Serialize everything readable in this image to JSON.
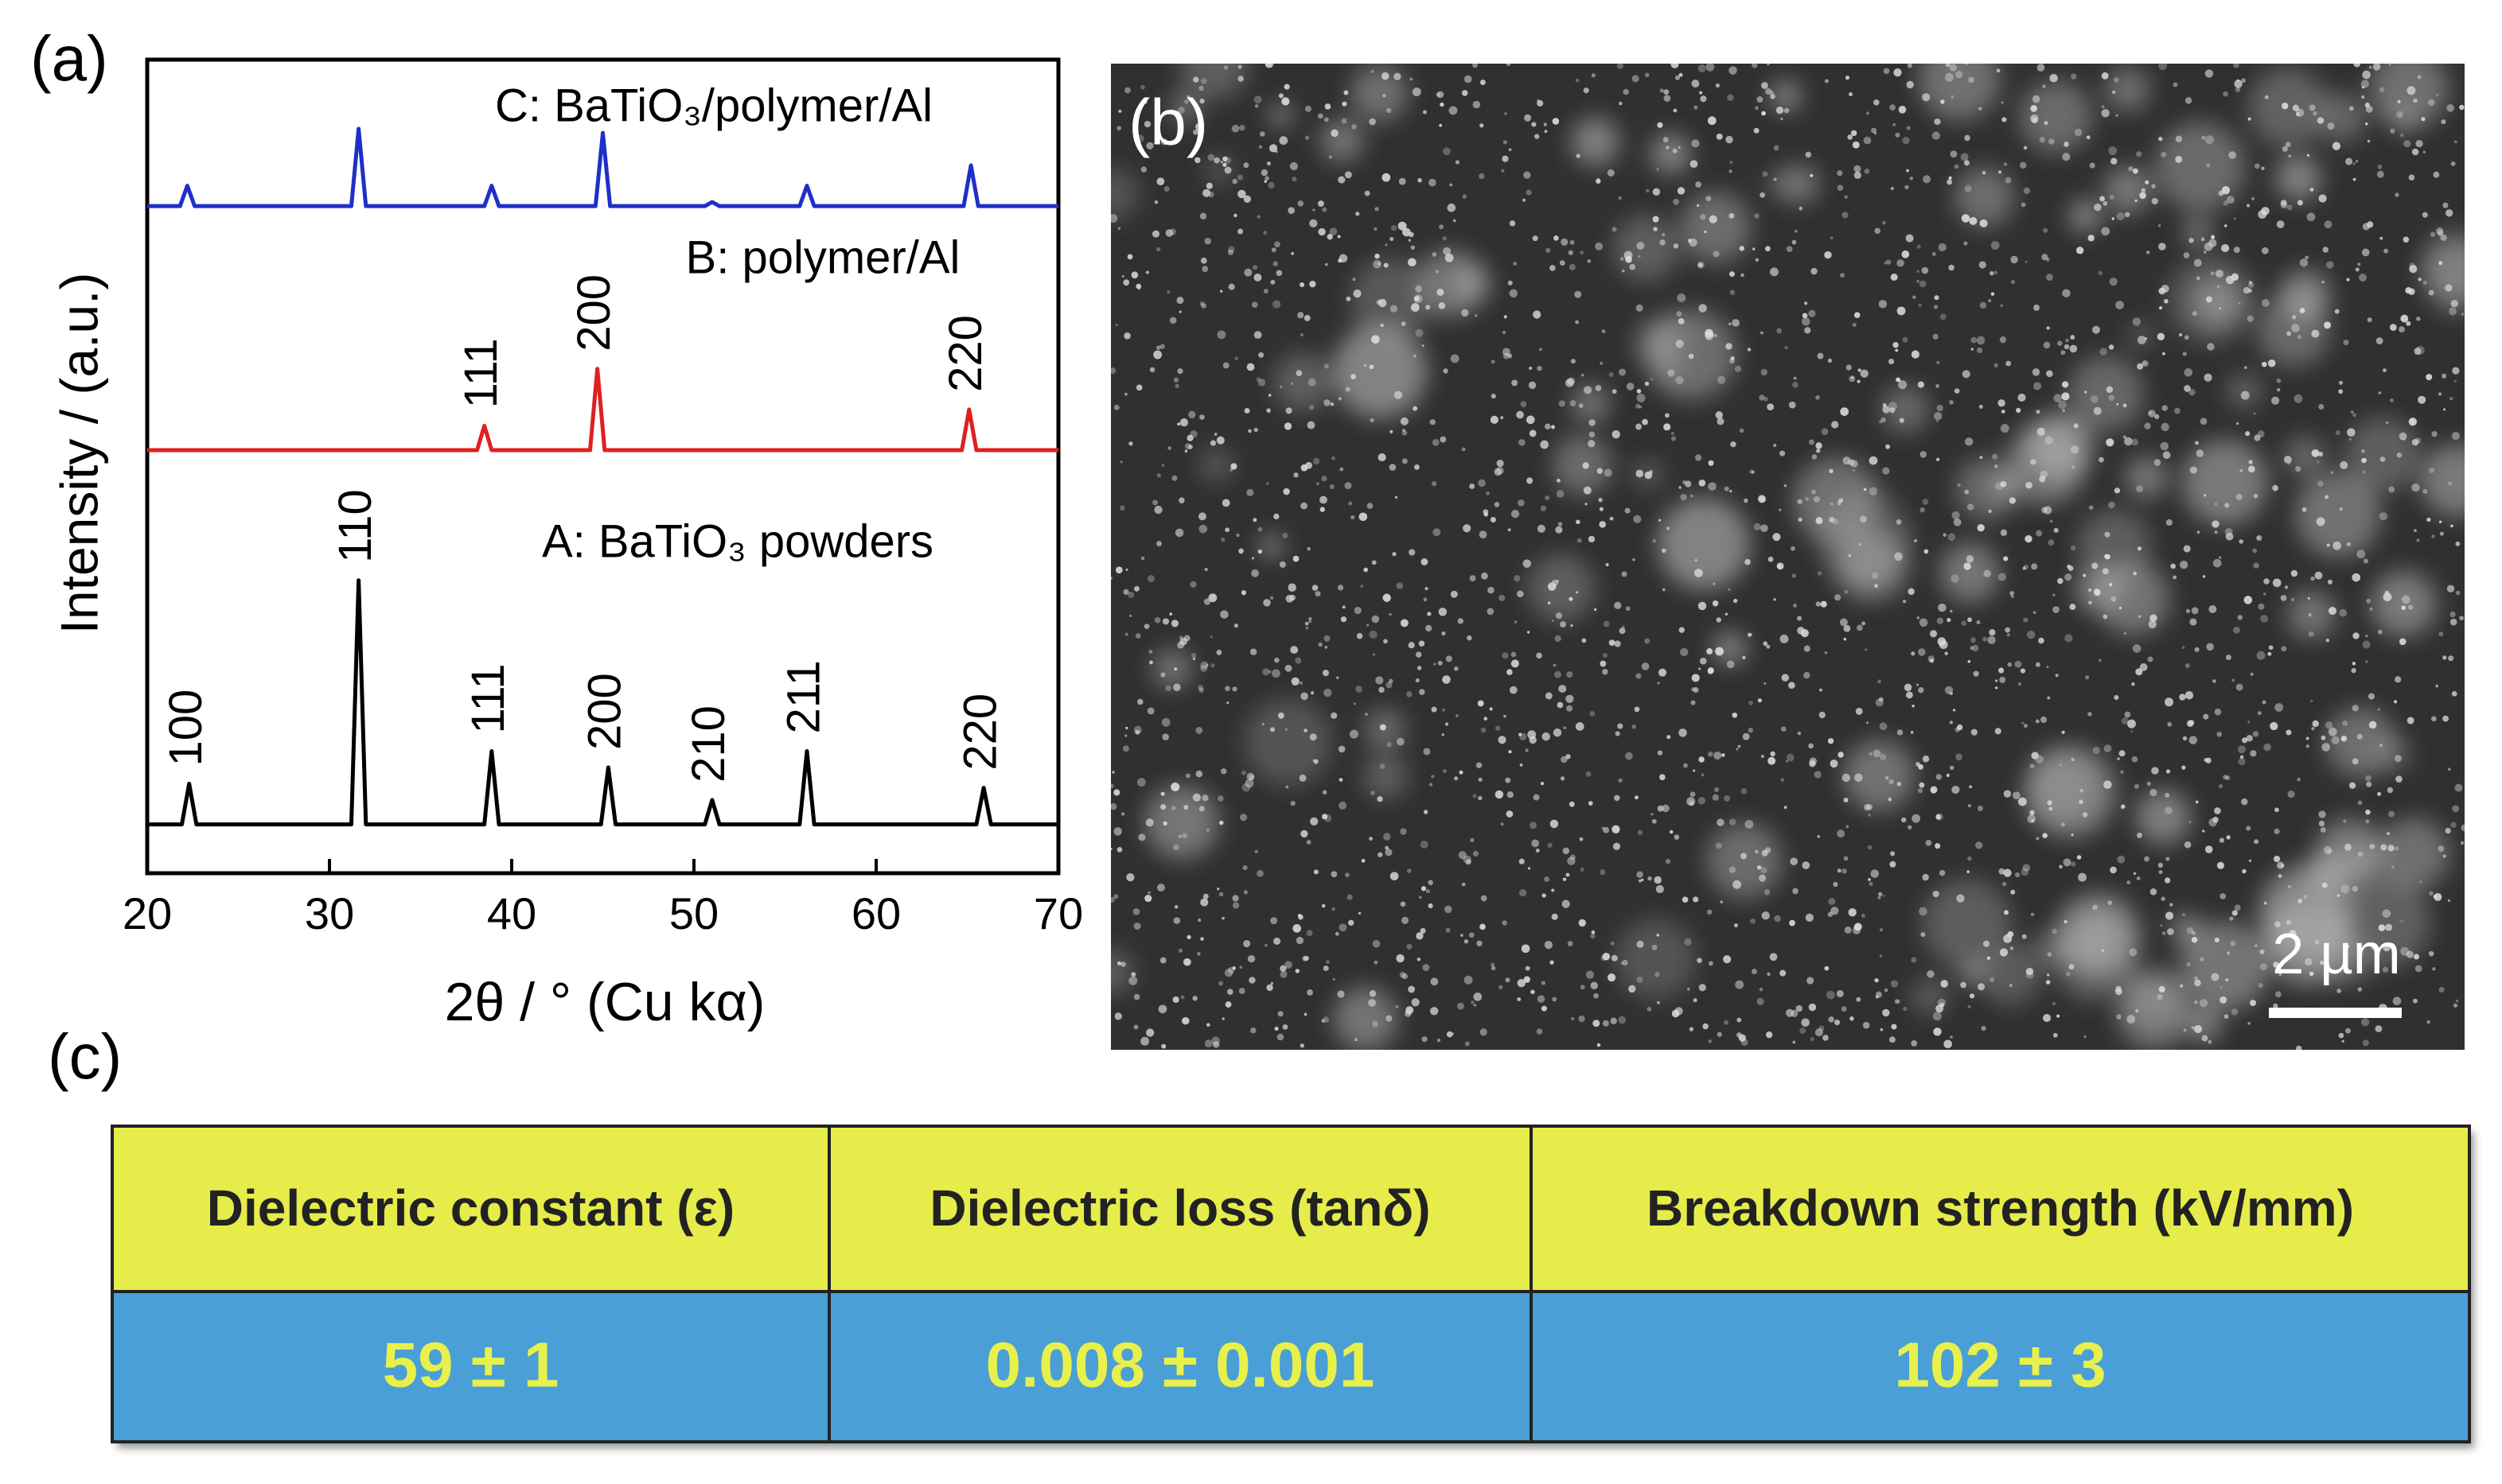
{
  "panel_labels": [
    "(a)",
    "(b)",
    "(c)"
  ],
  "chart_data": {
    "type": "line",
    "xlabel": "2θ / °  (Cu kα)",
    "ylabel": "Intensity / (a.u.)",
    "xlim": [
      20,
      70
    ],
    "xticks": [
      20,
      30,
      40,
      50,
      60,
      70
    ],
    "ylim": [
      0,
      100
    ],
    "series": [
      {
        "name": "A: BaTiO₃ powders",
        "color": "#000000",
        "x": [
          20,
          21.9,
          22.3,
          22.7,
          31.2,
          31.6,
          32.0,
          38.5,
          38.9,
          39.3,
          44.9,
          45.3,
          45.7,
          50.6,
          51.0,
          51.4,
          55.8,
          56.2,
          56.6,
          65.5,
          65.9,
          66.3,
          70
        ],
        "values": [
          6,
          6,
          11,
          6,
          6,
          36,
          6,
          6,
          15,
          6,
          6,
          13,
          6,
          6,
          9,
          6,
          6,
          15,
          6,
          6,
          10.5,
          6,
          6
        ],
        "peak_labels": [
          {
            "label": "100",
            "x": 22.3
          },
          {
            "label": "110",
            "x": 31.6
          },
          {
            "label": "111",
            "x": 38.9
          },
          {
            "label": "200",
            "x": 45.3
          },
          {
            "label": "210",
            "x": 51.0
          },
          {
            "label": "211",
            "x": 56.2
          },
          {
            "label": "220",
            "x": 65.9
          }
        ]
      },
      {
        "name": "B: polymer/Al",
        "color": "#e02020",
        "x": [
          20,
          38.1,
          38.5,
          38.9,
          44.3,
          44.7,
          45.1,
          64.7,
          65.1,
          65.5,
          70
        ],
        "values": [
          52,
          52,
          55,
          52,
          52,
          62,
          52,
          52,
          57,
          52,
          52
        ],
        "peak_labels": [
          {
            "label": "111",
            "x": 38.5
          },
          {
            "label": "200",
            "x": 44.7
          },
          {
            "label": "220",
            "x": 65.1
          }
        ]
      },
      {
        "name": "C: BaTiO₃/polymer/Al",
        "color": "#1f2fc8",
        "x": [
          20,
          21.8,
          22.2,
          22.6,
          31.2,
          31.6,
          32.0,
          38.5,
          38.9,
          39.3,
          44.6,
          45.0,
          45.4,
          50.6,
          51.0,
          51.4,
          55.8,
          56.2,
          56.6,
          64.8,
          65.2,
          65.6,
          70
        ],
        "values": [
          82,
          82,
          84.5,
          82,
          82,
          91.5,
          82,
          82,
          84.5,
          82,
          82,
          91,
          82,
          82,
          82.5,
          82,
          82,
          84.5,
          82,
          82,
          87,
          82,
          82
        ],
        "peak_labels": []
      }
    ]
  },
  "image_panel": {
    "scale_bar": "2 µm"
  },
  "table": {
    "header": [
      "Dielectric constant (ε)",
      "Dielectric loss (tanδ)",
      "Breakdown strength (kV/mm)"
    ],
    "rows": [
      [
        "59 ± 1",
        "0.008 ± 0.001",
        "102 ± 3"
      ]
    ]
  }
}
